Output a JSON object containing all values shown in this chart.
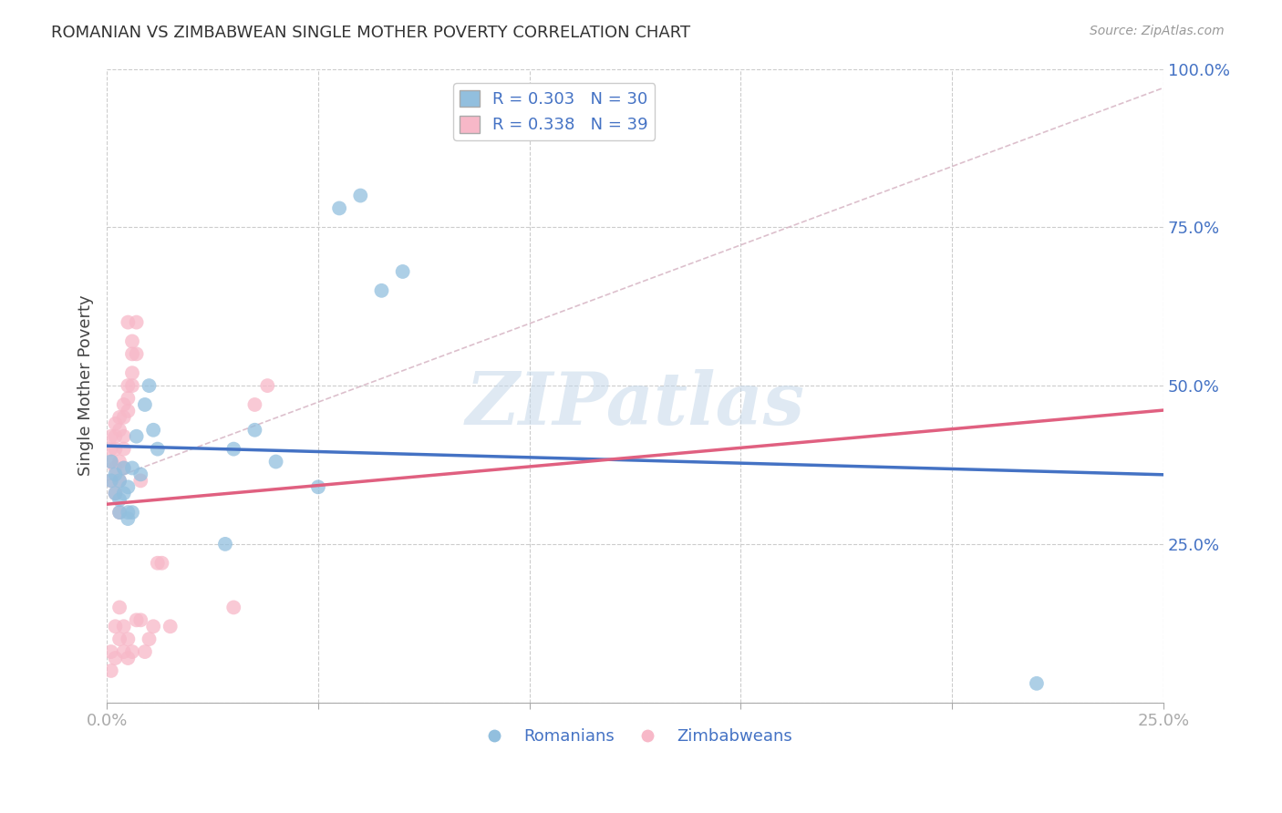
{
  "title": "ROMANIAN VS ZIMBABWEAN SINGLE MOTHER POVERTY CORRELATION CHART",
  "source": "Source: ZipAtlas.com",
  "ylabel": "Single Mother Poverty",
  "xlim": [
    0.0,
    0.25
  ],
  "ylim": [
    0.0,
    1.0
  ],
  "xticks": [
    0.0,
    0.05,
    0.1,
    0.15,
    0.2,
    0.25
  ],
  "yticks": [
    0.0,
    0.25,
    0.5,
    0.75,
    1.0
  ],
  "xtick_labels": [
    "0.0%",
    "",
    "",
    "",
    "",
    "25.0%"
  ],
  "ytick_labels": [
    "",
    "25.0%",
    "50.0%",
    "75.0%",
    "100.0%"
  ],
  "romanian_R": 0.303,
  "romanian_N": 30,
  "zimbabwean_R": 0.338,
  "zimbabwean_N": 39,
  "romanian_color": "#92bfde",
  "zimbabwean_color": "#f7b8c8",
  "romanian_line_color": "#4472c4",
  "zimbabwean_line_color": "#e06080",
  "watermark": "ZIPatlas",
  "romanian_x": [
    0.001,
    0.001,
    0.002,
    0.002,
    0.003,
    0.003,
    0.003,
    0.004,
    0.004,
    0.005,
    0.005,
    0.006,
    0.006,
    0.007,
    0.007,
    0.008,
    0.009,
    0.01,
    0.011,
    0.012,
    0.03,
    0.032,
    0.04,
    0.05,
    0.055,
    0.06,
    0.065,
    0.07,
    0.03,
    0.22
  ],
  "romanian_y": [
    0.35,
    0.38,
    0.33,
    0.36,
    0.35,
    0.32,
    0.3,
    0.37,
    0.33,
    0.34,
    0.3,
    0.37,
    0.3,
    0.42,
    0.38,
    0.36,
    0.47,
    0.5,
    0.43,
    0.4,
    0.4,
    0.43,
    0.38,
    0.33,
    0.78,
    0.8,
    0.65,
    0.68,
    0.25,
    0.03
  ],
  "zimbabwean_x": [
    0.001,
    0.001,
    0.001,
    0.002,
    0.002,
    0.002,
    0.002,
    0.003,
    0.003,
    0.003,
    0.003,
    0.003,
    0.004,
    0.004,
    0.004,
    0.004,
    0.004,
    0.005,
    0.005,
    0.005,
    0.005,
    0.006,
    0.006,
    0.006,
    0.006,
    0.007,
    0.007,
    0.008,
    0.008,
    0.009,
    0.01,
    0.01,
    0.011,
    0.012,
    0.013,
    0.015,
    0.03,
    0.035,
    0.038
  ],
  "zimbabwean_y": [
    0.35,
    0.38,
    0.4,
    0.37,
    0.4,
    0.42,
    0.44,
    0.43,
    0.45,
    0.46,
    0.35,
    0.38,
    0.45,
    0.47,
    0.42,
    0.4,
    0.37,
    0.46,
    0.48,
    0.5,
    0.6,
    0.5,
    0.52,
    0.55,
    0.57,
    0.55,
    0.6,
    0.35,
    0.63,
    0.65,
    0.08,
    0.1,
    0.12,
    0.25,
    0.25,
    0.12,
    0.15,
    0.47,
    0.5
  ]
}
